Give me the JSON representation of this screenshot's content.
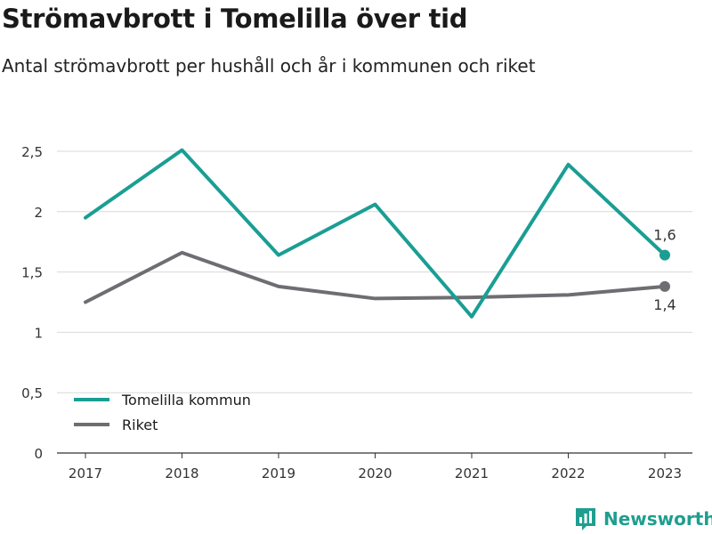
{
  "header": {
    "title": "Strömavbrott i Tomelilla över tid",
    "subtitle": "Antal strömavbrott per hushåll och år i kommunen och riket"
  },
  "branding": {
    "name": "Newsworthy",
    "icon": "newsworthy-logo-icon",
    "color": "#1f9e8f"
  },
  "chart_data": {
    "type": "line",
    "x": [
      "2017",
      "2018",
      "2019",
      "2020",
      "2021",
      "2022",
      "2023"
    ],
    "yticks": [
      {
        "value": 0,
        "label": "0"
      },
      {
        "value": 0.5,
        "label": "0,5"
      },
      {
        "value": 1,
        "label": "1"
      },
      {
        "value": 1.5,
        "label": "1,5"
      },
      {
        "value": 2,
        "label": "2"
      },
      {
        "value": 2.5,
        "label": "2,5"
      }
    ],
    "ylim": [
      0,
      2.6
    ],
    "grid": true,
    "legend_position": "bottom-left",
    "series": [
      {
        "name": "Tomelilla kommun",
        "color": "#1a9e94",
        "values": [
          1.95,
          2.51,
          1.64,
          2.06,
          1.13,
          2.39,
          1.64
        ],
        "end_label": "1,6",
        "end_label_position": "above"
      },
      {
        "name": "Riket",
        "color": "#6e6e72",
        "values": [
          1.25,
          1.66,
          1.38,
          1.28,
          1.29,
          1.31,
          1.38
        ],
        "end_label": "1,4",
        "end_label_position": "below"
      }
    ]
  }
}
